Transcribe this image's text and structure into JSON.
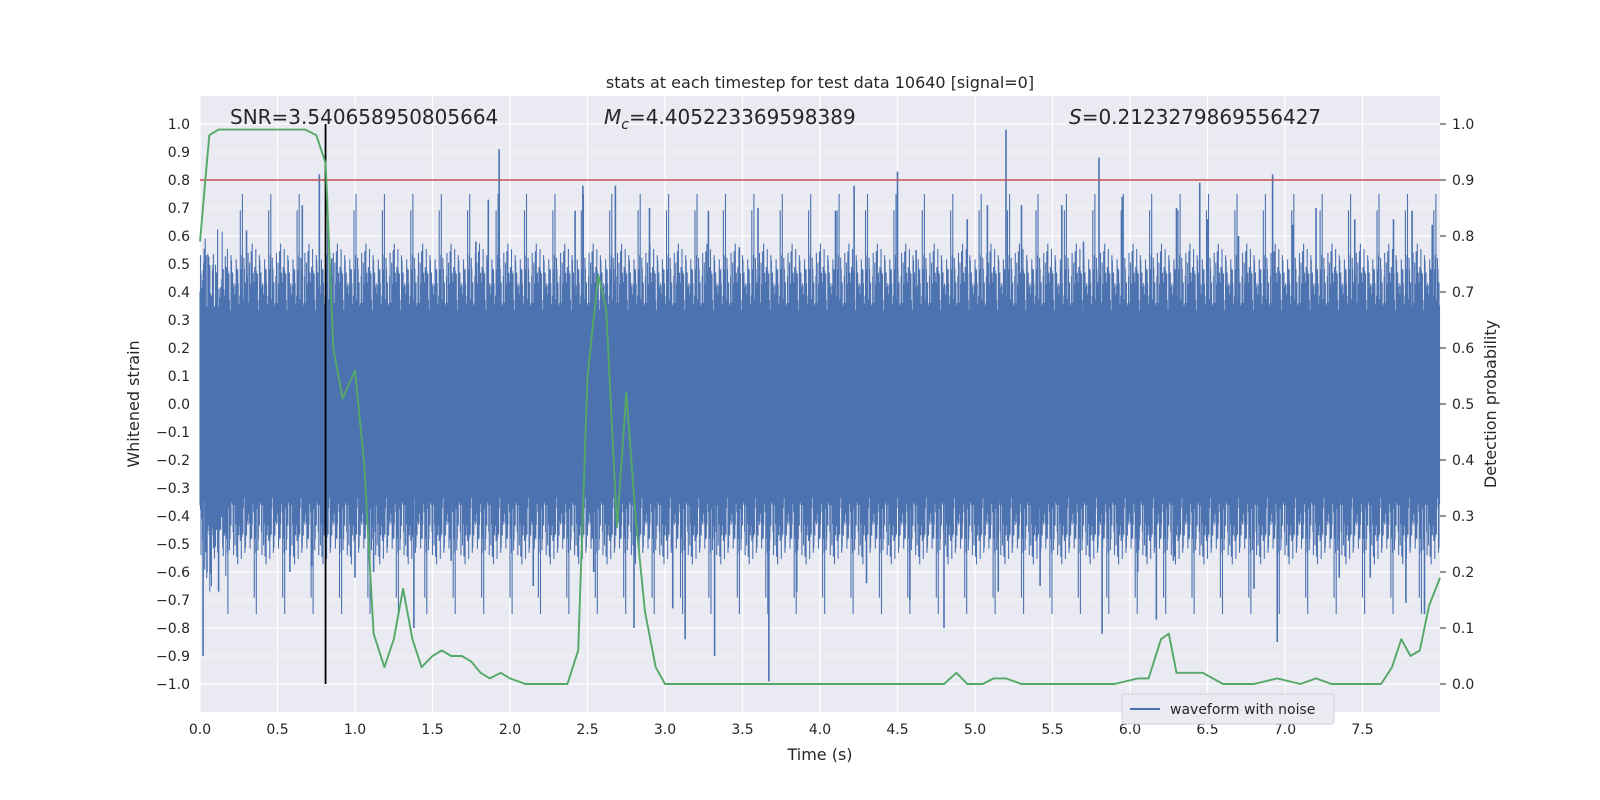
{
  "chart_data": {
    "type": "line",
    "title": "stats at each timestep for test data 10640 [signal=0]",
    "xlabel": "Time (s)",
    "ylabel": "Whitened strain",
    "ylabel_right": "Detection probability",
    "xlim": [
      0,
      8
    ],
    "ylim": [
      -1.1,
      1.1
    ],
    "ylim_right": [
      -0.05,
      1.05
    ],
    "x_ticks": [
      "0.0",
      "0.5",
      "1.0",
      "1.5",
      "2.0",
      "2.5",
      "3.0",
      "3.5",
      "4.0",
      "4.5",
      "5.0",
      "5.5",
      "6.0",
      "6.5",
      "7.0",
      "7.5"
    ],
    "y_ticks": [
      "1.0",
      "0.9",
      "0.8",
      "0.7",
      "0.6",
      "0.5",
      "0.4",
      "0.3",
      "0.2",
      "0.1",
      "0.0",
      "−0.1",
      "−0.2",
      "−0.3",
      "−0.4",
      "−0.5",
      "−0.6",
      "−0.7",
      "−0.8",
      "−0.9",
      "−1.0"
    ],
    "y_ticks_right": [
      "1.0",
      "0.9",
      "0.8",
      "0.7",
      "0.6",
      "0.5",
      "0.4",
      "0.3",
      "0.2",
      "0.1",
      "0.0"
    ],
    "grid": true,
    "legend_position": "bottom-right",
    "annotations": {
      "snr": "SNR=3.540658950805664",
      "mc_symbol": "M",
      "mc_subscript": "c",
      "mc_value": "=4.405223369598389",
      "s_symbol": "S",
      "s_value": "=0.2123279869556427"
    },
    "threshold": 0.9,
    "marker_time": 0.81,
    "series": [
      {
        "name": "waveform with noise",
        "color": "#4c72b0",
        "axis": "left",
        "note": "dense noise, envelope approx",
        "spikes": [
          [
            0.02,
            -0.9
          ],
          [
            0.12,
            -0.67
          ],
          [
            0.3,
            0.62
          ],
          [
            0.58,
            -0.6
          ],
          [
            0.66,
            0.71
          ],
          [
            0.72,
            -0.58
          ],
          [
            0.77,
            0.82
          ],
          [
            0.85,
            0.52
          ],
          [
            1.0,
            -0.62
          ],
          [
            1.12,
            -0.6
          ],
          [
            1.25,
            0.55
          ],
          [
            1.38,
            -0.8
          ],
          [
            1.62,
            -0.56
          ],
          [
            1.78,
            0.58
          ],
          [
            1.93,
            0.91
          ],
          [
            1.86,
            0.73
          ],
          [
            2.15,
            -0.65
          ],
          [
            2.42,
            0.69
          ],
          [
            2.47,
            0.78
          ],
          [
            2.54,
            -0.6
          ],
          [
            2.68,
            0.78
          ],
          [
            2.8,
            -0.8
          ],
          [
            2.9,
            0.7
          ],
          [
            3.05,
            -0.73
          ],
          [
            3.13,
            -0.84
          ],
          [
            3.28,
            0.69
          ],
          [
            3.32,
            -0.9
          ],
          [
            3.48,
            0.56
          ],
          [
            3.6,
            0.7
          ],
          [
            3.67,
            -0.99
          ],
          [
            3.85,
            -0.67
          ],
          [
            4.1,
            0.69
          ],
          [
            4.22,
            0.78
          ],
          [
            4.3,
            -0.64
          ],
          [
            4.5,
            0.83
          ],
          [
            4.58,
            -0.7
          ],
          [
            4.62,
            0.55
          ],
          [
            4.8,
            -0.8
          ],
          [
            4.95,
            0.66
          ],
          [
            5.08,
            0.71
          ],
          [
            5.15,
            -0.67
          ],
          [
            5.2,
            0.98
          ],
          [
            5.3,
            0.71
          ],
          [
            5.42,
            -0.65
          ],
          [
            5.56,
            0.71
          ],
          [
            5.7,
            0.58
          ],
          [
            5.8,
            0.88
          ],
          [
            5.82,
            -0.82
          ],
          [
            5.95,
            0.74
          ],
          [
            6.05,
            -0.6
          ],
          [
            6.17,
            -0.77
          ],
          [
            6.28,
            -0.56
          ],
          [
            6.3,
            0.7
          ],
          [
            6.45,
            0.79
          ],
          [
            6.5,
            0.66
          ],
          [
            6.7,
            0.6
          ],
          [
            6.8,
            -0.66
          ],
          [
            6.92,
            0.82
          ],
          [
            6.95,
            -0.85
          ],
          [
            7.05,
            0.64
          ],
          [
            7.2,
            0.7
          ],
          [
            7.35,
            -0.62
          ],
          [
            7.45,
            0.66
          ],
          [
            7.55,
            -0.62
          ],
          [
            7.7,
            0.66
          ],
          [
            7.78,
            -0.71
          ],
          [
            7.82,
            0.69
          ],
          [
            7.9,
            -0.75
          ],
          [
            7.95,
            0.64
          ]
        ]
      },
      {
        "name": "Detection probability",
        "color": "#55a868",
        "axis": "right",
        "x": [
          0.0,
          0.06,
          0.12,
          0.2,
          0.3,
          0.4,
          0.5,
          0.6,
          0.68,
          0.75,
          0.81,
          0.86,
          0.92,
          1.0,
          1.06,
          1.12,
          1.19,
          1.25,
          1.31,
          1.37,
          1.43,
          1.5,
          1.56,
          1.62,
          1.69,
          1.75,
          1.81,
          1.87,
          1.94,
          2.0,
          2.1,
          2.2,
          2.3,
          2.37,
          2.44,
          2.5,
          2.57,
          2.62,
          2.69,
          2.75,
          2.81,
          2.87,
          2.94,
          3.0,
          3.1,
          3.2,
          3.3,
          3.5,
          3.8,
          4.0,
          4.3,
          4.6,
          4.8,
          4.88,
          4.95,
          5.05,
          5.12,
          5.2,
          5.3,
          5.4,
          5.6,
          5.9,
          6.05,
          6.12,
          6.2,
          6.25,
          6.3,
          6.4,
          6.47,
          6.6,
          6.8,
          6.95,
          7.1,
          7.2,
          7.3,
          7.5,
          7.62,
          7.69,
          7.75,
          7.81,
          7.87,
          7.93,
          8.0
        ],
        "values": [
          0.79,
          0.98,
          0.99,
          0.99,
          0.99,
          0.99,
          0.99,
          0.99,
          0.99,
          0.98,
          0.93,
          0.6,
          0.51,
          0.56,
          0.39,
          0.09,
          0.03,
          0.08,
          0.17,
          0.08,
          0.03,
          0.05,
          0.06,
          0.05,
          0.05,
          0.04,
          0.02,
          0.01,
          0.02,
          0.01,
          0.0,
          0.0,
          0.0,
          0.0,
          0.06,
          0.55,
          0.73,
          0.67,
          0.28,
          0.52,
          0.3,
          0.13,
          0.03,
          0.0,
          0.0,
          0.0,
          0.0,
          0.0,
          0.0,
          0.0,
          0.0,
          0.0,
          0.0,
          0.02,
          0.0,
          0.0,
          0.01,
          0.01,
          0.0,
          0.0,
          0.0,
          0.0,
          0.01,
          0.01,
          0.08,
          0.09,
          0.02,
          0.02,
          0.02,
          0.0,
          0.0,
          0.01,
          0.0,
          0.01,
          0.0,
          0.0,
          0.0,
          0.03,
          0.08,
          0.05,
          0.06,
          0.14,
          0.19
        ]
      },
      {
        "name": "threshold",
        "color": "#c44e52",
        "axis": "right"
      }
    ]
  }
}
